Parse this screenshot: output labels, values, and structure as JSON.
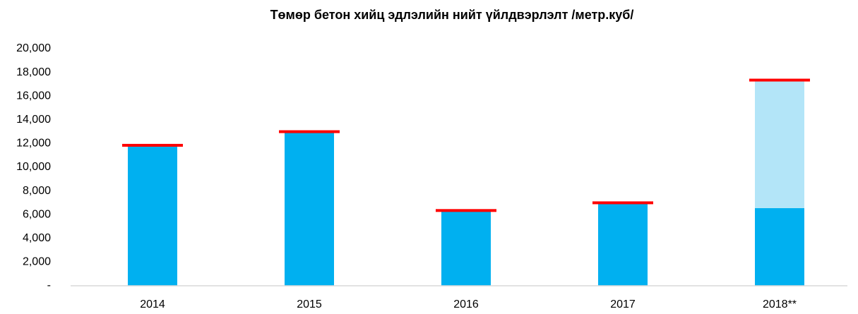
{
  "chart_data": {
    "type": "bar",
    "stacked": true,
    "title": "Төмөр бетон хийц эдлэлийн нийт үйлдвэрлэлт /метр.куб/",
    "categories": [
      "2014",
      "2015",
      "2016",
      "2017",
      "2018**"
    ],
    "series": [
      {
        "color": "#00b0f0",
        "values": [
          11850,
          13000,
          6350,
          7000,
          6550
        ]
      },
      {
        "color": "#b3e5f8",
        "values": [
          null,
          null,
          null,
          null,
          10800
        ]
      },
      {
        "color": "#ff0000",
        "type": "marker",
        "values": [
          11850,
          13000,
          6350,
          7000,
          17350
        ]
      }
    ],
    "ylim": [
      0,
      20000
    ],
    "yticks": [
      {
        "value": 0,
        "label": "-"
      },
      {
        "value": 2000,
        "label": "2,000"
      },
      {
        "value": 4000,
        "label": "4,000"
      },
      {
        "value": 6000,
        "label": "6,000"
      },
      {
        "value": 8000,
        "label": "8,000"
      },
      {
        "value": 10000,
        "label": "10,000"
      },
      {
        "value": 12000,
        "label": "12,000"
      },
      {
        "value": 14000,
        "label": "14,000"
      },
      {
        "value": 16000,
        "label": "16,000"
      },
      {
        "value": 18000,
        "label": "18,000"
      },
      {
        "value": 20000,
        "label": "20,000"
      }
    ],
    "grid": false
  }
}
